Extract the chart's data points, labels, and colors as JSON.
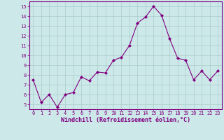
{
  "x": [
    0,
    1,
    2,
    3,
    4,
    5,
    6,
    7,
    8,
    9,
    10,
    11,
    12,
    13,
    14,
    15,
    16,
    17,
    18,
    19,
    20,
    21,
    22,
    23
  ],
  "y": [
    7.5,
    5.2,
    6.0,
    4.7,
    6.0,
    6.2,
    7.8,
    7.4,
    8.3,
    8.2,
    9.5,
    9.8,
    11.0,
    13.3,
    13.9,
    15.0,
    14.1,
    11.7,
    9.7,
    9.5,
    7.5,
    8.4,
    7.5,
    8.4
  ],
  "line_color": "#800080",
  "marker": "D",
  "marker_size": 2.0,
  "bg_color": "#cce8e8",
  "grid_color": "#aacccc",
  "xlabel": "Windchill (Refroidissement éolien,°C)",
  "xlabel_color": "#800080",
  "tick_color": "#800080",
  "ylim": [
    4.5,
    15.5
  ],
  "yticks": [
    5,
    6,
    7,
    8,
    9,
    10,
    11,
    12,
    13,
    14,
    15
  ],
  "xticks": [
    0,
    1,
    2,
    3,
    4,
    5,
    6,
    7,
    8,
    9,
    10,
    11,
    12,
    13,
    14,
    15,
    16,
    17,
    18,
    19,
    20,
    21,
    22,
    23
  ]
}
